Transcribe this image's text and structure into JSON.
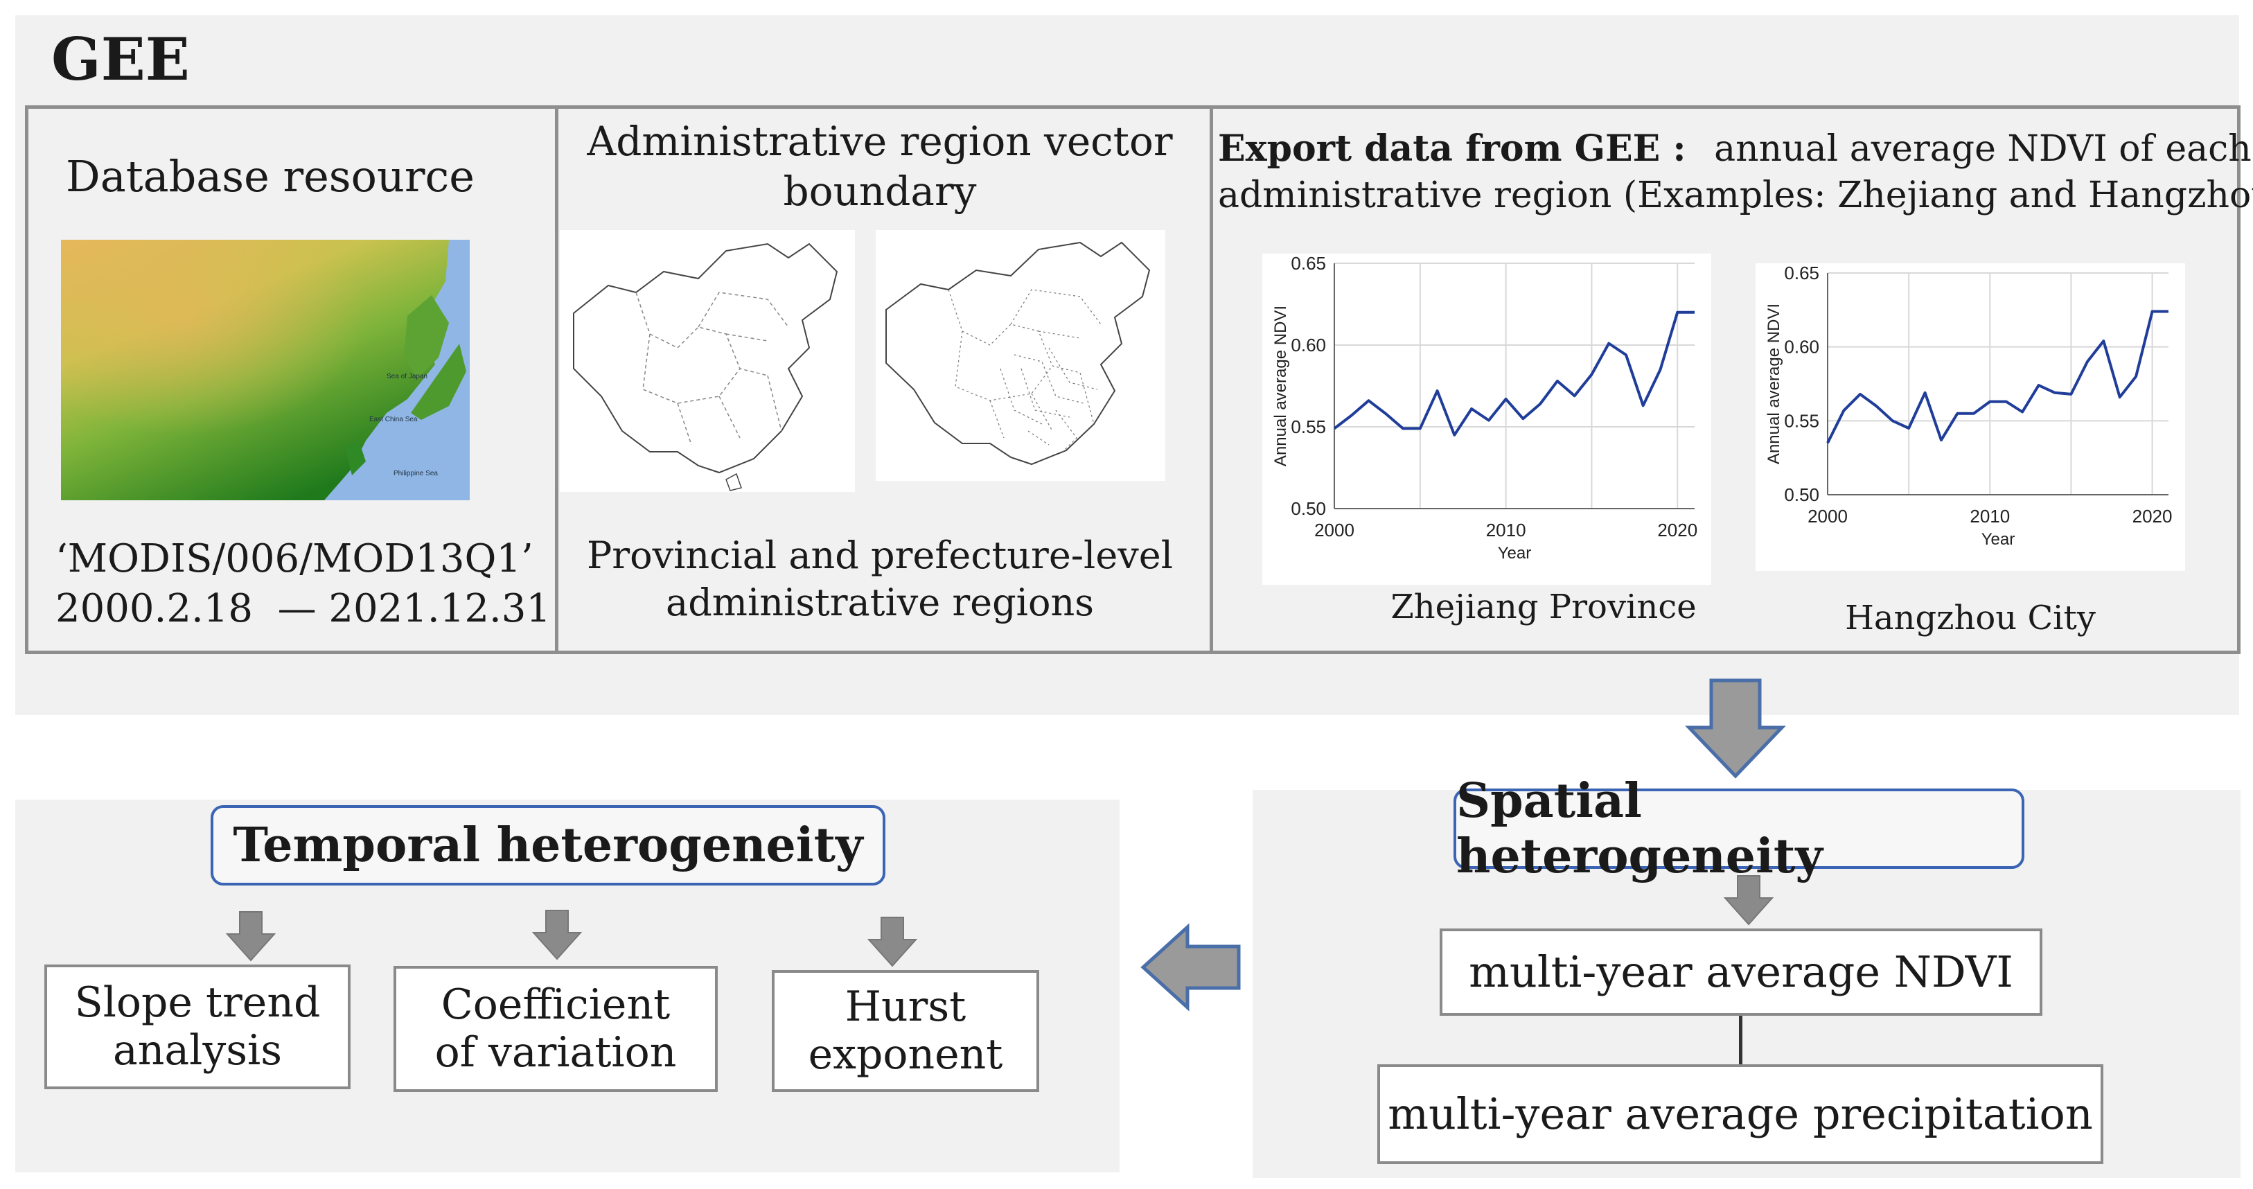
{
  "gee_panel": {
    "title": "GEE",
    "database": {
      "title": "Database resource",
      "dataset_id": "‘MODIS/006/MOD13Q1’",
      "date_range": "2000.2.18  — 2021.12.31",
      "map_labels": [
        "Sea of Japan",
        "East China Sea",
        "Philippine Sea"
      ]
    },
    "boundary": {
      "title_line1": "Administrative region vector",
      "title_line2": "boundary",
      "caption_line1": "Provincial and prefecture-level",
      "caption_line2": "administrative regions"
    },
    "export": {
      "title_bold": "Export data from GEE :",
      "title_rest": "annual average NDVI of each",
      "title_line2": "administrative region (Examples: Zhejiang and Hangzhou)"
    }
  },
  "chart_data": [
    {
      "type": "line",
      "title": "Zhejiang Province",
      "xlabel": "Year",
      "ylabel": "Annual average NDVI",
      "xlim": [
        2000,
        2021
      ],
      "ylim": [
        0.5,
        0.65
      ],
      "x_ticks": [
        "2000",
        "2010",
        "2020"
      ],
      "y_ticks": [
        "0.65",
        "0.60",
        "0.55",
        "0.50"
      ],
      "x": [
        2000,
        2001,
        2002,
        2003,
        2004,
        2005,
        2006,
        2007,
        2008,
        2009,
        2010,
        2011,
        2012,
        2013,
        2014,
        2015,
        2016,
        2017,
        2018,
        2019,
        2020,
        2021
      ],
      "values": [
        0.549,
        0.557,
        0.566,
        0.558,
        0.549,
        0.549,
        0.572,
        0.545,
        0.561,
        0.554,
        0.567,
        0.555,
        0.564,
        0.578,
        0.569,
        0.582,
        0.601,
        0.594,
        0.563,
        0.585,
        0.62,
        0.62
      ],
      "color": "#1f3d99",
      "grid": true
    },
    {
      "type": "line",
      "title": "Hangzhou City",
      "xlabel": "Year",
      "ylabel": "Annual average NDVI",
      "xlim": [
        2000,
        2021
      ],
      "ylim": [
        0.5,
        0.65
      ],
      "x_ticks": [
        "2000",
        "2010",
        "2020"
      ],
      "y_ticks": [
        "0.65",
        "0.60",
        "0.55",
        "0.50"
      ],
      "x": [
        2000,
        2001,
        2002,
        2003,
        2004,
        2005,
        2006,
        2007,
        2008,
        2009,
        2010,
        2011,
        2012,
        2013,
        2014,
        2015,
        2016,
        2017,
        2018,
        2019,
        2020,
        2021
      ],
      "values": [
        0.535,
        0.557,
        0.568,
        0.56,
        0.55,
        0.545,
        0.569,
        0.537,
        0.555,
        0.555,
        0.563,
        0.563,
        0.556,
        0.574,
        0.569,
        0.568,
        0.59,
        0.604,
        0.566,
        0.58,
        0.624,
        0.624
      ],
      "color": "#1f3d99",
      "grid": true
    }
  ],
  "spatial": {
    "title": "Spatial heterogeneity",
    "box1": "multi-year average NDVI",
    "box2": "multi-year average precipitation"
  },
  "temporal": {
    "title": "Temporal heterogeneity",
    "box1_line1": "Slope trend",
    "box1_line2": "analysis",
    "box2_line1": "Coefficient",
    "box2_line2": "of variation",
    "box3_line1": "Hurst",
    "box3_line2": "exponent"
  },
  "colors": {
    "arrow_fill": "#9a9a9a",
    "arrow_stroke": "#4a6fa8",
    "title_border": "#3b64b4",
    "line": "#1f3d99"
  }
}
